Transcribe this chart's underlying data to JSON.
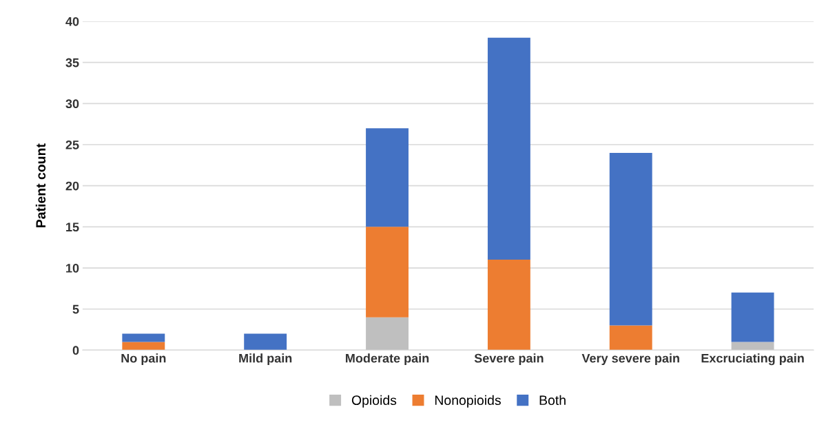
{
  "chart_data": {
    "type": "bar",
    "stacked": true,
    "ylabel": "Patient count",
    "categories": [
      "No pain",
      "Mild pain",
      "Moderate pain",
      "Severe pain",
      "Very severe pain",
      "Excruciating pain"
    ],
    "series": [
      {
        "name": "Opioids",
        "color": "#bfbfbf",
        "values": [
          0,
          0,
          4,
          0,
          0,
          1
        ]
      },
      {
        "name": "Nonopioids",
        "color": "#ed7d31",
        "values": [
          1,
          0,
          11,
          11,
          3,
          0
        ]
      },
      {
        "name": "Both",
        "color": "#4472c4",
        "values": [
          1,
          2,
          12,
          27,
          21,
          6
        ]
      }
    ],
    "ylim": [
      0,
      40
    ],
    "yticks": [
      0,
      5,
      10,
      15,
      20,
      25,
      30,
      35,
      40
    ],
    "grid": "y",
    "legend": "bottom"
  }
}
